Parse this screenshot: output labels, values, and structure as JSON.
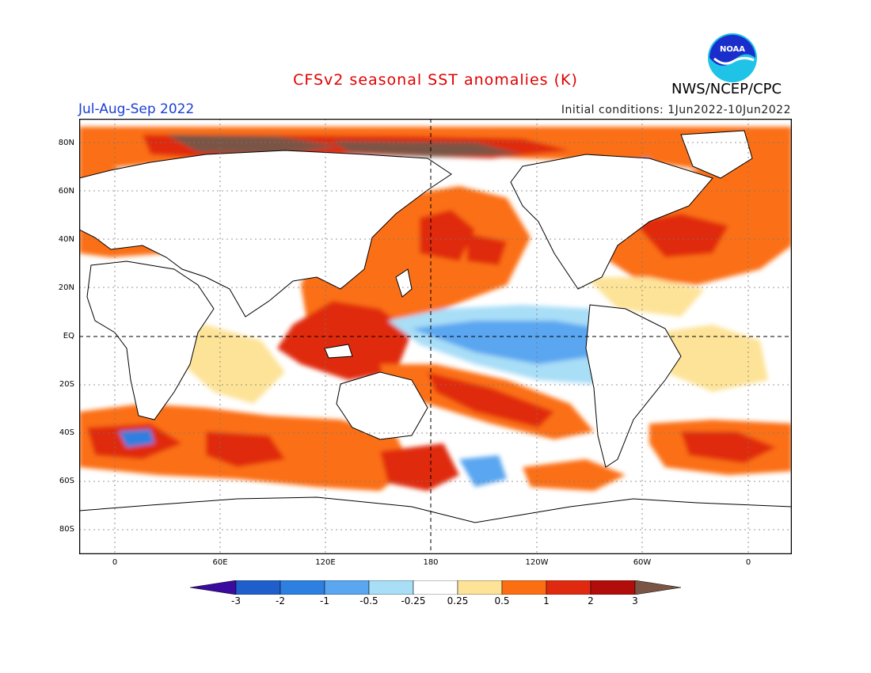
{
  "header": {
    "title": "CFSv2 seasonal SST anomalies (K)",
    "agency": "NWS/NCEP/CPC",
    "logo_text": "NOAA",
    "season": "Jul-Aug-Sep 2022",
    "initial_conditions": "Initial conditions: 1Jun2022-10Jun2022"
  },
  "map": {
    "lat_labels": [
      "80N",
      "60N",
      "40N",
      "20N",
      "EQ",
      "20S",
      "40S",
      "60S",
      "80S"
    ],
    "lon_labels": [
      "0",
      "60E",
      "120E",
      "180",
      "120W",
      "60W",
      "0"
    ]
  },
  "legend": {
    "tick_labels": [
      "-3",
      "-2",
      "-1",
      "-0.5",
      "-0.25",
      "0.25",
      "0.5",
      "1",
      "2",
      "3"
    ],
    "colors": [
      "#3b0a9e",
      "#1f5fcc",
      "#2d7fe0",
      "#5aa6f0",
      "#a9def7",
      "#ffffff",
      "#fde398",
      "#fb6f12",
      "#e02a10",
      "#b00d0b",
      "#7a5545"
    ]
  },
  "colors": {
    "title": "#e00000",
    "season": "#1a3fd6",
    "land": "#ffffff",
    "coast": "#000000"
  }
}
